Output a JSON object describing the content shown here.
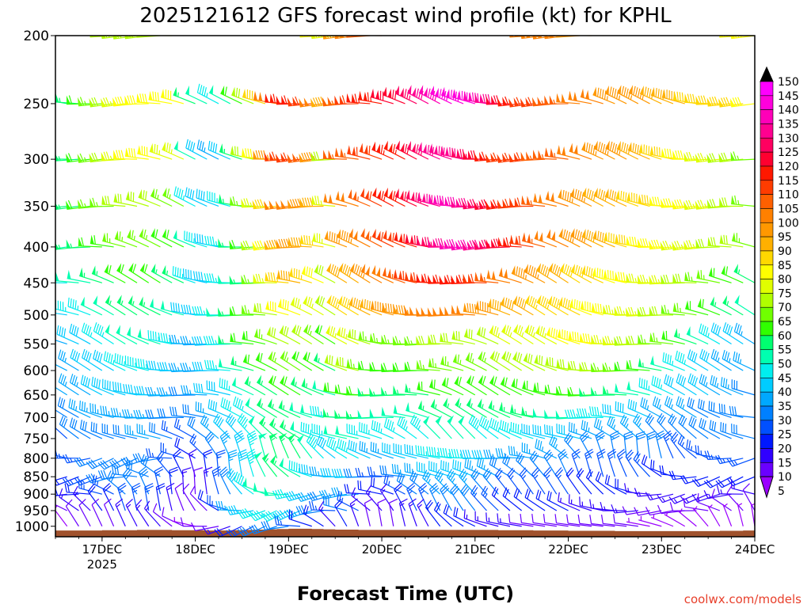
{
  "chart_data": {
    "type": "wind_barb_time_height",
    "title": "2025121612 GFS forecast wind profile (kt) for KPHL",
    "xlabel": "Forecast Time (UTC)",
    "ylabel": "",
    "credit": "coolwx.com/models",
    "x_ticks": [
      {
        "t": 12,
        "label": "17DEC",
        "sub": "2025"
      },
      {
        "t": 36,
        "label": "18DEC",
        "sub": ""
      },
      {
        "t": 60,
        "label": "19DEC",
        "sub": ""
      },
      {
        "t": 84,
        "label": "20DEC",
        "sub": ""
      },
      {
        "t": 108,
        "label": "21DEC",
        "sub": ""
      },
      {
        "t": 132,
        "label": "22DEC",
        "sub": ""
      },
      {
        "t": 156,
        "label": "23DEC",
        "sub": ""
      },
      {
        "t": 180,
        "label": "24DEC",
        "sub": ""
      }
    ],
    "x_range_hours": [
      0,
      180
    ],
    "y_levels_hpa": [
      200,
      250,
      300,
      350,
      400,
      450,
      500,
      550,
      600,
      650,
      700,
      750,
      800,
      850,
      900,
      950,
      1000
    ],
    "y_range_hpa": [
      200,
      1035
    ],
    "colorbar": {
      "units": "kt",
      "levels": [
        5,
        10,
        15,
        20,
        25,
        30,
        35,
        40,
        45,
        50,
        55,
        60,
        65,
        70,
        75,
        80,
        85,
        90,
        95,
        100,
        105,
        110,
        115,
        120,
        125,
        130,
        135,
        140,
        145,
        150
      ],
      "colors": [
        "#9a00ff",
        "#6a00ff",
        "#3000ff",
        "#0018ff",
        "#0050ff",
        "#0080ff",
        "#00a8ff",
        "#00ccff",
        "#00eeee",
        "#00ffb0",
        "#00ff70",
        "#30ff00",
        "#70ff00",
        "#b0ff00",
        "#e0ff00",
        "#ffff00",
        "#ffd800",
        "#ffb000",
        "#ff9800",
        "#ff8000",
        "#ff6000",
        "#ff3c00",
        "#ff1800",
        "#ff0030",
        "#ff0060",
        "#ff0090",
        "#ff00b8",
        "#ff00dc",
        "#ff00ff",
        "#000000"
      ]
    },
    "barb_levels_hpa": [
      200,
      250,
      300,
      350,
      400,
      450,
      500,
      550,
      600,
      650,
      700,
      750,
      800,
      850,
      900,
      950,
      1000
    ],
    "barb_time_step_hours": 3,
    "wind_speed_kt": {
      "200": [
        55,
        55,
        50,
        60,
        65,
        70,
        70,
        70,
        70,
        70,
        75,
        75,
        75,
        70,
        65,
        60,
        60,
        70,
        90,
        95,
        90,
        85,
        85,
        80,
        75,
        95,
        100,
        105,
        105,
        105,
        110,
        110,
        115,
        120,
        125,
        130,
        120,
        115,
        110,
        105,
        105,
        100,
        100,
        100,
        100,
        95,
        95,
        90,
        90,
        90,
        90,
        90,
        90,
        85,
        85,
        85,
        80,
        80,
        80,
        80,
        80
      ],
      "250": [
        55,
        55,
        55,
        60,
        65,
        70,
        75,
        80,
        80,
        80,
        80,
        80,
        55,
        50,
        45,
        50,
        60,
        70,
        85,
        100,
        115,
        115,
        110,
        100,
        90,
        105,
        110,
        115,
        115,
        120,
        120,
        125,
        130,
        135,
        140,
        140,
        140,
        135,
        130,
        120,
        115,
        110,
        110,
        105,
        105,
        100,
        100,
        100,
        95,
        95,
        95,
        95,
        90,
        90,
        90,
        85,
        85,
        85,
        85,
        85,
        80
      ],
      "300": [
        55,
        55,
        55,
        60,
        65,
        70,
        75,
        80,
        80,
        80,
        75,
        75,
        50,
        40,
        35,
        40,
        55,
        70,
        80,
        95,
        110,
        110,
        105,
        95,
        70,
        105,
        105,
        110,
        110,
        115,
        115,
        120,
        125,
        130,
        130,
        130,
        125,
        120,
        115,
        110,
        110,
        110,
        105,
        105,
        105,
        100,
        100,
        95,
        95,
        95,
        90,
        90,
        85,
        85,
        80,
        80,
        75,
        75,
        70,
        70,
        65
      ],
      "350": [
        55,
        55,
        55,
        60,
        65,
        65,
        70,
        70,
        70,
        70,
        65,
        65,
        45,
        40,
        40,
        45,
        55,
        65,
        75,
        85,
        100,
        100,
        95,
        90,
        75,
        100,
        100,
        105,
        110,
        115,
        115,
        120,
        125,
        130,
        135,
        135,
        130,
        125,
        120,
        115,
        110,
        110,
        105,
        100,
        100,
        95,
        95,
        90,
        90,
        90,
        85,
        85,
        85,
        80,
        80,
        80,
        75,
        75,
        70,
        70,
        65
      ],
      "400": [
        50,
        50,
        55,
        55,
        60,
        60,
        65,
        65,
        65,
        65,
        60,
        60,
        50,
        45,
        40,
        45,
        55,
        60,
        70,
        80,
        90,
        95,
        90,
        85,
        75,
        95,
        95,
        100,
        105,
        110,
        110,
        115,
        120,
        125,
        130,
        135,
        135,
        130,
        125,
        120,
        115,
        110,
        105,
        100,
        100,
        95,
        95,
        90,
        90,
        85,
        85,
        80,
        80,
        80,
        75,
        75,
        75,
        70,
        70,
        70,
        65
      ],
      "450": [
        45,
        45,
        50,
        50,
        55,
        55,
        60,
        60,
        60,
        60,
        55,
        55,
        45,
        40,
        40,
        45,
        50,
        55,
        65,
        75,
        85,
        90,
        85,
        80,
        70,
        90,
        90,
        95,
        100,
        100,
        105,
        110,
        110,
        115,
        115,
        115,
        115,
        110,
        105,
        100,
        100,
        95,
        95,
        90,
        90,
        85,
        85,
        85,
        80,
        80,
        80,
        75,
        75,
        75,
        70,
        70,
        65,
        65,
        60,
        60,
        55
      ],
      "500": [
        40,
        40,
        45,
        45,
        50,
        50,
        55,
        55,
        55,
        55,
        50,
        50,
        40,
        40,
        45,
        50,
        55,
        60,
        65,
        70,
        80,
        80,
        75,
        75,
        70,
        85,
        85,
        90,
        90,
        95,
        95,
        95,
        100,
        100,
        100,
        100,
        100,
        95,
        95,
        90,
        90,
        90,
        85,
        85,
        85,
        85,
        80,
        80,
        80,
        75,
        75,
        75,
        70,
        70,
        65,
        65,
        60,
        60,
        55,
        55,
        50
      ],
      "550": [
        35,
        35,
        40,
        40,
        45,
        45,
        50,
        50,
        50,
        50,
        45,
        45,
        35,
        35,
        40,
        45,
        55,
        60,
        60,
        65,
        70,
        70,
        70,
        65,
        60,
        75,
        75,
        70,
        65,
        65,
        65,
        65,
        65,
        70,
        70,
        70,
        70,
        70,
        70,
        75,
        75,
        75,
        75,
        75,
        80,
        80,
        80,
        80,
        75,
        75,
        70,
        70,
        65,
        65,
        60,
        55,
        50,
        45,
        40,
        40,
        35
      ],
      "600": [
        35,
        35,
        35,
        40,
        40,
        40,
        45,
        45,
        45,
        45,
        40,
        40,
        35,
        35,
        40,
        45,
        50,
        55,
        60,
        60,
        65,
        65,
        60,
        60,
        55,
        70,
        70,
        65,
        60,
        60,
        60,
        60,
        60,
        65,
        65,
        65,
        65,
        65,
        65,
        70,
        70,
        70,
        70,
        70,
        70,
        70,
        70,
        70,
        65,
        65,
        60,
        60,
        55,
        50,
        45,
        45,
        40,
        40,
        35,
        35,
        35
      ],
      "650": [
        35,
        35,
        35,
        35,
        40,
        40,
        40,
        40,
        40,
        40,
        35,
        35,
        30,
        35,
        40,
        40,
        45,
        50,
        55,
        55,
        60,
        60,
        55,
        55,
        50,
        60,
        60,
        60,
        55,
        55,
        55,
        55,
        55,
        60,
        60,
        60,
        60,
        60,
        60,
        60,
        60,
        60,
        60,
        60,
        60,
        60,
        60,
        55,
        55,
        55,
        50,
        50,
        45,
        45,
        40,
        40,
        40,
        35,
        35,
        35,
        30
      ],
      "700": [
        30,
        30,
        30,
        35,
        35,
        35,
        35,
        35,
        35,
        35,
        30,
        30,
        30,
        30,
        35,
        40,
        45,
        45,
        50,
        55,
        55,
        55,
        50,
        50,
        45,
        55,
        55,
        55,
        50,
        50,
        50,
        50,
        50,
        55,
        55,
        55,
        55,
        55,
        55,
        55,
        55,
        55,
        55,
        50,
        50,
        50,
        45,
        45,
        45,
        40,
        40,
        40,
        35,
        35,
        35,
        35,
        30,
        30,
        30,
        30,
        30
      ],
      "750": [
        25,
        25,
        30,
        30,
        30,
        30,
        30,
        30,
        35,
        35,
        30,
        25,
        25,
        30,
        35,
        40,
        40,
        45,
        50,
        55,
        55,
        55,
        50,
        45,
        45,
        50,
        50,
        45,
        45,
        45,
        45,
        45,
        45,
        50,
        50,
        50,
        50,
        45,
        45,
        45,
        45,
        45,
        40,
        40,
        40,
        40,
        35,
        35,
        35,
        35,
        35,
        35,
        30,
        30,
        30,
        30,
        30,
        30,
        30,
        30,
        30
      ],
      "800": [
        20,
        25,
        25,
        25,
        30,
        30,
        30,
        30,
        30,
        30,
        25,
        25,
        20,
        25,
        30,
        35,
        40,
        45,
        50,
        55,
        55,
        55,
        50,
        45,
        40,
        45,
        45,
        40,
        35,
        35,
        40,
        40,
        40,
        45,
        45,
        45,
        45,
        40,
        40,
        35,
        35,
        35,
        35,
        35,
        35,
        30,
        30,
        30,
        30,
        30,
        30,
        30,
        30,
        25,
        25,
        25,
        25,
        25,
        25,
        25,
        25
      ],
      "850": [
        15,
        20,
        20,
        25,
        25,
        30,
        30,
        30,
        30,
        30,
        25,
        20,
        15,
        20,
        25,
        35,
        40,
        45,
        50,
        55,
        55,
        50,
        45,
        40,
        35,
        40,
        40,
        30,
        25,
        25,
        30,
        35,
        35,
        40,
        40,
        40,
        40,
        35,
        35,
        30,
        30,
        30,
        30,
        30,
        30,
        25,
        25,
        25,
        25,
        25,
        25,
        25,
        20,
        20,
        20,
        20,
        20,
        20,
        20,
        20,
        20
      ],
      "900": [
        15,
        15,
        20,
        20,
        25,
        25,
        30,
        30,
        30,
        25,
        20,
        15,
        10,
        15,
        25,
        30,
        40,
        45,
        50,
        50,
        50,
        45,
        40,
        35,
        30,
        35,
        35,
        20,
        20,
        20,
        25,
        30,
        30,
        35,
        35,
        35,
        35,
        30,
        30,
        25,
        25,
        25,
        25,
        25,
        25,
        20,
        20,
        20,
        20,
        20,
        20,
        15,
        15,
        15,
        15,
        15,
        15,
        15,
        15,
        15,
        15
      ],
      "950": [
        10,
        10,
        15,
        15,
        20,
        20,
        25,
        25,
        25,
        20,
        15,
        10,
        10,
        10,
        20,
        25,
        35,
        40,
        45,
        45,
        45,
        40,
        35,
        30,
        25,
        30,
        25,
        15,
        15,
        15,
        20,
        25,
        25,
        30,
        30,
        30,
        30,
        25,
        25,
        20,
        20,
        20,
        20,
        20,
        20,
        15,
        15,
        15,
        15,
        15,
        15,
        10,
        10,
        10,
        10,
        10,
        10,
        10,
        10,
        10,
        10
      ],
      "1000": [
        5,
        5,
        10,
        10,
        10,
        10,
        15,
        15,
        15,
        15,
        10,
        10,
        5,
        10,
        10,
        15,
        20,
        25,
        30,
        30,
        30,
        25,
        20,
        20,
        15,
        20,
        15,
        10,
        10,
        10,
        15,
        15,
        15,
        20,
        20,
        20,
        20,
        15,
        15,
        15,
        15,
        10,
        10,
        10,
        10,
        10,
        10,
        10,
        10,
        10,
        10,
        5,
        5,
        5,
        5,
        5,
        5,
        5,
        5,
        5,
        5
      ]
    },
    "wind_direction_deg": {
      "upper_default": 280,
      "mid_default": 285,
      "low_default": 300
    },
    "surface_pressure_hpa": [
      1014,
      1014,
      1014,
      1014,
      1013,
      1013,
      1013,
      1012,
      1012,
      1012,
      1013,
      1013,
      1013,
      1014,
      1014,
      1013,
      1012,
      1011,
      1010,
      1009,
      1008,
      1008,
      1009,
      1010,
      1011,
      1011,
      1012,
      1012,
      1012,
      1012,
      1012,
      1012,
      1012,
      1012,
      1012,
      1012,
      1012,
      1012,
      1013,
      1013,
      1013,
      1014,
      1014,
      1014,
      1015,
      1015,
      1015,
      1015,
      1016,
      1016,
      1016,
      1016,
      1016,
      1016,
      1016,
      1016,
      1016,
      1015,
      1015,
      1014,
      1014
    ],
    "surface_color": "#a0522d"
  }
}
